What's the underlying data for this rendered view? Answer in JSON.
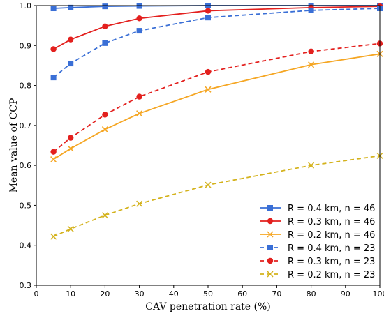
{
  "chart_data": {
    "type": "line",
    "xlabel": "CAV penetration rate (%)",
    "ylabel": "Mean value of CCP",
    "xlim": [
      0,
      100
    ],
    "ylim": [
      0.3,
      1.0
    ],
    "xticks": [
      0,
      10,
      20,
      30,
      40,
      50,
      60,
      70,
      80,
      90,
      100
    ],
    "yticks": [
      0.3,
      0.4,
      0.5,
      0.6,
      0.7,
      0.8,
      0.9,
      1.0
    ],
    "grid": false,
    "legend_position": "bottom-right",
    "x": [
      5,
      10,
      20,
      30,
      50,
      80,
      100
    ],
    "series": [
      {
        "name": "R = 0.4 km, n = 46",
        "color": "#3a6fd6",
        "marker": "square",
        "linestyle": "solid",
        "values": [
          0.993,
          0.995,
          0.998,
          0.999,
          1.0,
          1.0,
          1.0
        ]
      },
      {
        "name": "R = 0.3 km, n = 46",
        "color": "#e3201e",
        "marker": "circle",
        "linestyle": "solid",
        "values": [
          0.891,
          0.915,
          0.948,
          0.968,
          0.987,
          0.995,
          0.998
        ]
      },
      {
        "name": "R = 0.2 km, n = 46",
        "color": "#f5a623",
        "marker": "x",
        "linestyle": "solid",
        "values": [
          0.615,
          0.642,
          0.69,
          0.73,
          0.79,
          0.852,
          0.879
        ]
      },
      {
        "name": "R = 0.4 km, n = 23",
        "color": "#3a6fd6",
        "marker": "square",
        "linestyle": "dashed",
        "values": [
          0.82,
          0.855,
          0.906,
          0.937,
          0.97,
          0.988,
          0.993
        ]
      },
      {
        "name": "R = 0.3 km, n = 23",
        "color": "#e3201e",
        "marker": "circle",
        "linestyle": "dashed",
        "values": [
          0.634,
          0.669,
          0.727,
          0.772,
          0.834,
          0.885,
          0.905
        ]
      },
      {
        "name": "R = 0.2 km, n = 23",
        "color": "#d4b21c",
        "marker": "x",
        "linestyle": "dashed",
        "values": [
          0.422,
          0.441,
          0.475,
          0.504,
          0.551,
          0.6,
          0.624
        ]
      }
    ]
  }
}
